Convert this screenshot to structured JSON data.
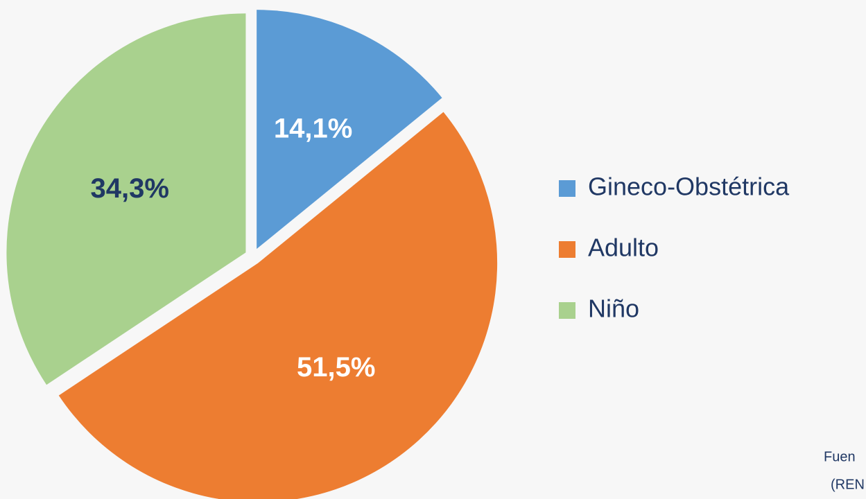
{
  "chart_data": {
    "type": "pie",
    "categories": [
      "Gineco-Obstétrica",
      "Adulto",
      "Niño"
    ],
    "values": [
      14.1,
      51.5,
      34.3
    ],
    "value_labels": [
      "14,1%",
      "51,5%",
      "34,3%"
    ],
    "colors": [
      "#5b9bd5",
      "#ed7d31",
      "#a9d18e"
    ],
    "label_colors": [
      "#ffffff",
      "#ffffff",
      "#203864"
    ],
    "legend": "right",
    "annotations": [
      "Fuen",
      "(REN"
    ]
  }
}
